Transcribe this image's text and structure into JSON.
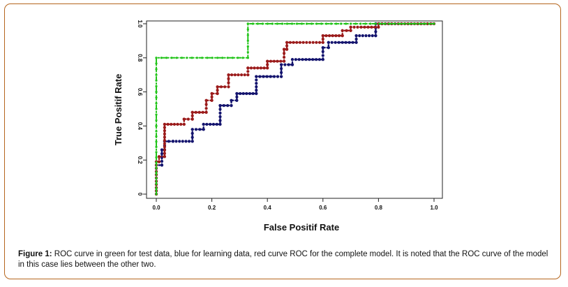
{
  "caption": {
    "label": "Figure 1:",
    "text": "ROC curve in green for test data, blue for learning data, red curve ROC for the complete model. It is noted that the ROC curve of the model in this case lies between the other two."
  },
  "chart_data": {
    "type": "line",
    "title": "",
    "xlabel": "False Positif Rate",
    "ylabel": "True Positif Rate",
    "xlim": [
      0,
      1
    ],
    "ylim": [
      0,
      1
    ],
    "xticks": [
      "0.0",
      "0.2",
      "0.4",
      "0.6",
      "0.8",
      "1.0"
    ],
    "yticks": [
      "0",
      "0.2",
      "0.4",
      "0.6",
      "0.8",
      "1.0"
    ],
    "grid": false,
    "legend": "none",
    "series": [
      {
        "color": "#22c41a",
        "style": "dash-dot-markers",
        "x": [
          0,
          0,
          0,
          0,
          0.33,
          0.33,
          1.0
        ],
        "y": [
          0,
          0.4,
          0.6,
          0.8,
          0.8,
          1.0,
          1.0
        ]
      },
      {
        "color": "#9b1b1b",
        "style": "dotted-markers",
        "x": [
          0,
          0,
          0.01,
          0.01,
          0.03,
          0.03,
          0.1,
          0.1,
          0.13,
          0.13,
          0.18,
          0.18,
          0.2,
          0.2,
          0.22,
          0.22,
          0.26,
          0.26,
          0.33,
          0.33,
          0.4,
          0.4,
          0.46,
          0.46,
          0.47,
          0.47,
          0.6,
          0.6,
          0.67,
          0.67,
          0.7,
          0.7,
          0.8,
          0.8,
          1.0
        ],
        "y": [
          0,
          0.19,
          0.19,
          0.22,
          0.22,
          0.41,
          0.41,
          0.44,
          0.44,
          0.48,
          0.48,
          0.55,
          0.55,
          0.59,
          0.59,
          0.63,
          0.63,
          0.7,
          0.7,
          0.74,
          0.74,
          0.78,
          0.78,
          0.85,
          0.85,
          0.89,
          0.89,
          0.93,
          0.93,
          0.96,
          0.96,
          0.98,
          0.98,
          1.0,
          1.0
        ]
      },
      {
        "color": "#14146e",
        "style": "dotted-markers",
        "x": [
          0,
          0,
          0.02,
          0.02,
          0.03,
          0.03,
          0.06,
          0.06,
          0.13,
          0.13,
          0.17,
          0.17,
          0.23,
          0.23,
          0.27,
          0.27,
          0.29,
          0.29,
          0.36,
          0.36,
          0.45,
          0.45,
          0.49,
          0.49,
          0.6,
          0.6,
          0.62,
          0.62,
          0.72,
          0.72,
          0.79,
          0.79,
          1.0
        ],
        "y": [
          0,
          0.17,
          0.17,
          0.26,
          0.26,
          0.31,
          0.31,
          0.31,
          0.31,
          0.38,
          0.38,
          0.41,
          0.41,
          0.52,
          0.52,
          0.55,
          0.55,
          0.59,
          0.59,
          0.69,
          0.69,
          0.76,
          0.76,
          0.79,
          0.79,
          0.86,
          0.86,
          0.89,
          0.89,
          0.93,
          0.93,
          1.0,
          1.0
        ]
      }
    ]
  }
}
